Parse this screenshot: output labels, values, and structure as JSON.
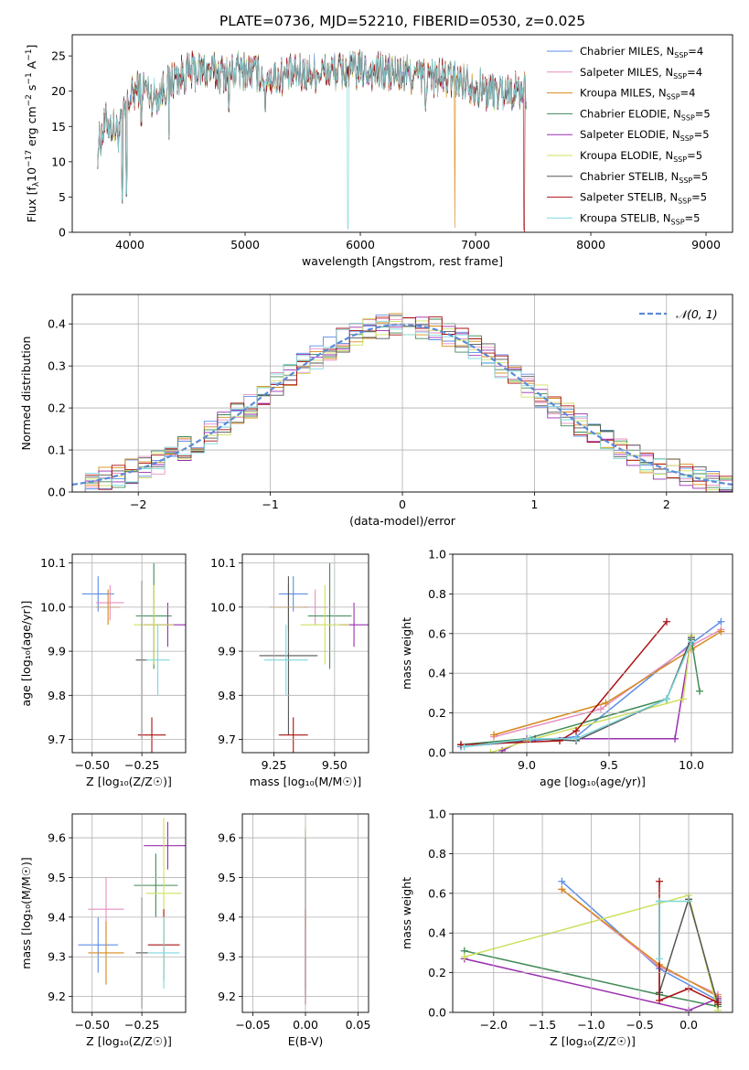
{
  "figure_title": "PLATE=0736, MJD=52210, FIBERID=0530, z=0.025",
  "colors": [
    "#5b8de6",
    "#e88ec0",
    "#d68a1a",
    "#3f8a55",
    "#9a2fb0",
    "#cfe060",
    "#555555",
    "#aa1010",
    "#7dd8dd"
  ],
  "legend_spectrum": [
    {
      "pre": "Chabrier MILES, N",
      "sub": "SSP",
      "post": "=4"
    },
    {
      "pre": "Salpeter MILES, N",
      "sub": "SSP",
      "post": "=4"
    },
    {
      "pre": "Kroupa MILES, N",
      "sub": "SSP",
      "post": "=4"
    },
    {
      "pre": "Chabrier ELODIE, N",
      "sub": "SSP",
      "post": "=5"
    },
    {
      "pre": "Salpeter ELODIE, N",
      "sub": "SSP",
      "post": "=5"
    },
    {
      "pre": "Kroupa ELODIE, N",
      "sub": "SSP",
      "post": "=5"
    },
    {
      "pre": "Chabrier STELIB, N",
      "sub": "SSP",
      "post": "=5"
    },
    {
      "pre": "Salpeter STELIB, N",
      "sub": "SSP",
      "post": "=5"
    },
    {
      "pre": "Kroupa STELIB, N",
      "sub": "SSP",
      "post": "=5"
    }
  ],
  "legend_normal": "𝒩(0, 1)",
  "chart_data": [
    {
      "id": "spectrum",
      "type": "line",
      "xlabel": "wavelength [Angstrom, rest frame]",
      "ylabel_parts": {
        "a": "Flux [f",
        "sub": "λ",
        "b": "10",
        "sup1": "−17",
        "c": " erg cm",
        "sup2": "−2",
        "d": " s",
        "sup3": "−1",
        "e": " A",
        "sup4": "−1",
        "f": "]"
      },
      "xlim": [
        3500,
        9230
      ],
      "ylim": [
        0,
        28
      ],
      "xticks": [
        4000,
        5000,
        6000,
        7000,
        8000,
        9000
      ],
      "yticks": [
        0,
        5,
        10,
        15,
        20,
        25
      ],
      "x_range_data": [
        3720,
        7440
      ],
      "continuum": [
        [
          3720,
          12
        ],
        [
          3800,
          16
        ],
        [
          3900,
          14
        ],
        [
          4000,
          19
        ],
        [
          4100,
          21
        ],
        [
          4200,
          19
        ],
        [
          4400,
          22
        ],
        [
          4600,
          23
        ],
        [
          4800,
          22.5
        ],
        [
          5000,
          23
        ],
        [
          5200,
          22
        ],
        [
          5500,
          22.5
        ],
        [
          6000,
          23
        ],
        [
          6300,
          22.5
        ],
        [
          6600,
          22
        ],
        [
          6900,
          21.5
        ],
        [
          7100,
          20
        ],
        [
          7400,
          20
        ]
      ],
      "dips": [
        [
          3934,
          4
        ],
        [
          3969,
          5
        ],
        [
          4102,
          15
        ],
        [
          4340,
          13
        ],
        [
          4861,
          17
        ],
        [
          5175,
          17
        ],
        [
          5893,
          0
        ],
        [
          6563,
          17
        ],
        [
          6820,
          0
        ],
        [
          7420,
          0
        ]
      ]
    },
    {
      "id": "residuals",
      "type": "step",
      "xlabel": "(data-model)/error",
      "ylabel": "Normed distribution",
      "xlim": [
        -2.5,
        2.5
      ],
      "ylim": [
        0,
        0.47
      ],
      "xticks": [
        -2,
        -1,
        0,
        1,
        2
      ],
      "xticklabels": [
        "−2",
        "−1",
        "0",
        "1",
        "2"
      ],
      "yticks": [
        0,
        0.1,
        0.2,
        0.3,
        0.4
      ],
      "yticklabels": [
        "0.0",
        "0.1",
        "0.2",
        "0.3",
        "0.4"
      ],
      "bin_width": 0.1,
      "normal_mu": 0,
      "normal_sigma": 1
    },
    {
      "id": "age-vs-Z",
      "type": "scatter",
      "xlabel": "Z [log₁₀(Z/Z☉)]",
      "ylabel": "age  [log₁₀(age/yr)]",
      "xlim": [
        -0.6,
        -0.03
      ],
      "ylim": [
        9.67,
        10.12
      ],
      "xticks": [
        -0.5,
        -0.25
      ],
      "xticklabels": [
        "−0.50",
        "−0.25"
      ],
      "yticks": [
        9.7,
        9.8,
        9.9,
        10.0,
        10.1
      ],
      "yticklabels": [
        "9.7",
        "9.8",
        "9.9",
        "10.0",
        "10.1"
      ],
      "points": [
        {
          "x": -0.47,
          "y": 10.03,
          "xe": 0.08,
          "ye": 0.04
        },
        {
          "x": -0.41,
          "y": 10.01,
          "xe": 0.07,
          "ye": 0.04
        },
        {
          "x": -0.42,
          "y": 10.0,
          "xe": 0.06,
          "ye": 0.04
        },
        {
          "x": -0.19,
          "y": 9.98,
          "xe": 0.09,
          "ye": 0.12
        },
        {
          "x": -0.12,
          "y": 9.96,
          "xe": 0.12,
          "ye": 0.05
        },
        {
          "x": -0.19,
          "y": 9.96,
          "xe": 0.1,
          "ye": 0.09
        },
        {
          "x": -0.25,
          "y": 9.88,
          "xe": 0.03,
          "ye": 0.18
        },
        {
          "x": -0.2,
          "y": 9.71,
          "xe": 0.07,
          "ye": 0.04
        },
        {
          "x": -0.17,
          "y": 9.88,
          "xe": 0.06,
          "ye": 0.08
        }
      ]
    },
    {
      "id": "age-vs-mass",
      "type": "scatter",
      "xlabel": "mass [log₁₀(M/M☉)]",
      "ylabel": "",
      "xlim": [
        9.12,
        9.64
      ],
      "ylim": [
        9.67,
        10.12
      ],
      "xticks": [
        9.25,
        9.5
      ],
      "xticklabels": [
        "9.25",
        "9.50"
      ],
      "yticks": [
        9.7,
        9.8,
        9.9,
        10.0,
        10.1
      ],
      "yticklabels": [
        "9.7",
        "9.8",
        "9.9",
        "10.0",
        "10.1"
      ],
      "points": [
        {
          "x": 9.33,
          "y": 10.03,
          "xe": 0.06,
          "ye": 0.04
        },
        {
          "x": 9.42,
          "y": 10.0,
          "xe": 0.05,
          "ye": 0.04
        },
        {
          "x": 9.31,
          "y": 10.0,
          "xe": 0.08,
          "ye": 0.05
        },
        {
          "x": 9.48,
          "y": 9.98,
          "xe": 0.09,
          "ye": 0.12
        },
        {
          "x": 9.58,
          "y": 9.96,
          "xe": 0.06,
          "ye": 0.05
        },
        {
          "x": 9.46,
          "y": 9.96,
          "xe": 0.1,
          "ye": 0.09
        },
        {
          "x": 9.31,
          "y": 9.89,
          "xe": 0.12,
          "ye": 0.18
        },
        {
          "x": 9.33,
          "y": 9.71,
          "xe": 0.06,
          "ye": 0.04
        },
        {
          "x": 9.3,
          "y": 9.88,
          "xe": 0.09,
          "ye": 0.08
        }
      ]
    },
    {
      "id": "weight-vs-age",
      "type": "line",
      "xlabel": "age  [log₁₀(age/yr)]",
      "ylabel": "mass weight",
      "xlim": [
        8.55,
        10.25
      ],
      "ylim": [
        0,
        1
      ],
      "xticks": [
        9.0,
        9.5,
        10.0
      ],
      "xticklabels": [
        "9.0",
        "9.5",
        "10.0"
      ],
      "yticks": [
        0,
        0.2,
        0.4,
        0.6,
        0.8,
        1.0
      ],
      "yticklabels": [
        "0.0",
        "0.2",
        "0.4",
        "0.6",
        "0.8",
        "1.0"
      ],
      "series": [
        {
          "x": [
            8.6,
            9.3,
            10.0,
            10.18
          ],
          "y": [
            0.03,
            0.08,
            0.55,
            0.66
          ]
        },
        {
          "x": [
            8.8,
            9.45,
            10.0,
            10.18
          ],
          "y": [
            0.08,
            0.22,
            0.54,
            0.62
          ]
        },
        {
          "x": [
            8.8,
            9.48,
            10.0,
            10.18
          ],
          "y": [
            0.09,
            0.25,
            0.52,
            0.61
          ]
        },
        {
          "x": [
            8.6,
            9.0,
            9.85,
            10.0,
            10.05
          ],
          "y": [
            0.04,
            0.07,
            0.27,
            0.57,
            0.31
          ]
        },
        {
          "x": [
            8.85,
            9.0,
            9.9,
            10.0
          ],
          "y": [
            0.01,
            0.07,
            0.07,
            0.58
          ]
        },
        {
          "x": [
            8.78,
            9.0,
            9.95,
            10.0
          ],
          "y": [
            0.0,
            0.06,
            0.27,
            0.59
          ]
        },
        {
          "x": [
            8.62,
            9.05,
            9.3,
            9.85,
            10.0
          ],
          "y": [
            0.03,
            0.07,
            0.06,
            0.27,
            0.58
          ]
        },
        {
          "x": [
            8.6,
            9.2,
            9.3,
            9.85
          ],
          "y": [
            0.04,
            0.06,
            0.11,
            0.66
          ]
        },
        {
          "x": [
            8.62,
            9.02,
            9.3,
            9.85,
            10.0
          ],
          "y": [
            0.03,
            0.07,
            0.07,
            0.27,
            0.56
          ]
        }
      ]
    },
    {
      "id": "mass-vs-Z",
      "type": "scatter",
      "xlabel": "Z [log₁₀(Z/Z☉)]",
      "ylabel": "mass [log₁₀(M/M☉)]",
      "xlim": [
        -0.6,
        -0.03
      ],
      "ylim": [
        9.16,
        9.66
      ],
      "xticks": [
        -0.5,
        -0.25
      ],
      "xticklabels": [
        "−0.50",
        "−0.25"
      ],
      "yticks": [
        9.2,
        9.3,
        9.4,
        9.5,
        9.6
      ],
      "yticklabels": [
        "9.2",
        "9.3",
        "9.4",
        "9.5",
        "9.6"
      ],
      "points": [
        {
          "x": -0.47,
          "y": 9.33,
          "xe": 0.1,
          "ye": 0.07
        },
        {
          "x": -0.43,
          "y": 9.42,
          "xe": 0.09,
          "ye": 0.08
        },
        {
          "x": -0.43,
          "y": 9.31,
          "xe": 0.09,
          "ye": 0.08
        },
        {
          "x": -0.18,
          "y": 9.48,
          "xe": 0.11,
          "ye": 0.08
        },
        {
          "x": -0.12,
          "y": 9.58,
          "xe": 0.12,
          "ye": 0.06
        },
        {
          "x": -0.14,
          "y": 9.46,
          "xe": 0.09,
          "ye": 0.19
        },
        {
          "x": -0.25,
          "y": 9.31,
          "xe": 0.03,
          "ye": 0.14
        },
        {
          "x": -0.14,
          "y": 9.33,
          "xe": 0.08,
          "ye": 0.09
        },
        {
          "x": -0.14,
          "y": 9.31,
          "xe": 0.08,
          "ye": 0.09
        }
      ]
    },
    {
      "id": "mass-vs-EBV",
      "type": "scatter",
      "xlabel": "E(B-V)",
      "ylabel": "",
      "xlim": [
        -0.06,
        0.06
      ],
      "ylim": [
        9.16,
        9.66
      ],
      "xticks": [
        -0.05,
        0.0,
        0.05
      ],
      "xticklabels": [
        "−0.05",
        "0.00",
        "0.05"
      ],
      "yticks": [
        9.2,
        9.3,
        9.4,
        9.5,
        9.6
      ],
      "yticklabels": [
        "9.2",
        "9.3",
        "9.4",
        "9.5",
        "9.6"
      ],
      "points": [
        {
          "x": 0,
          "y": 9.42,
          "xe": 0,
          "ye": 0.2
        },
        {
          "x": 0,
          "y": 9.5,
          "xe": 0,
          "ye": 0.13
        },
        {
          "x": 0,
          "y": 9.4,
          "xe": 0,
          "ye": 0.2
        },
        {
          "x": 0,
          "y": 9.3,
          "xe": 0,
          "ye": 0.12
        }
      ]
    },
    {
      "id": "weight-vs-Z",
      "type": "line",
      "xlabel": "Z [log₁₀(Z/Z☉)]",
      "ylabel": "mass weight",
      "xlim": [
        -2.42,
        0.45
      ],
      "ylim": [
        0,
        1
      ],
      "xticks": [
        -2.0,
        -1.5,
        -1.0,
        -0.5,
        0.0
      ],
      "xticklabels": [
        "−2.0",
        "−1.5",
        "−1.0",
        "−0.5",
        "0.0"
      ],
      "yticks": [
        0,
        0.2,
        0.4,
        0.6,
        0.8,
        1.0
      ],
      "yticklabels": [
        "0.0",
        "0.2",
        "0.4",
        "0.6",
        "0.8",
        "1.0"
      ],
      "series": [
        {
          "x": [
            -1.3,
            -0.3,
            0.3
          ],
          "y": [
            0.66,
            0.22,
            0.06
          ]
        },
        {
          "x": [
            -1.3,
            -0.3,
            0.3
          ],
          "y": [
            0.62,
            0.23,
            0.09
          ]
        },
        {
          "x": [
            -1.3,
            -0.3,
            0.3
          ],
          "y": [
            0.62,
            0.24,
            0.08
          ]
        },
        {
          "x": [
            -2.3,
            -0.3,
            0.3
          ],
          "y": [
            0.31,
            0.09,
            0.03
          ]
        },
        {
          "x": [
            -2.3,
            0.0,
            0.3
          ],
          "y": [
            0.27,
            0.01,
            0.07
          ]
        },
        {
          "x": [
            -2.3,
            0.0,
            0.3
          ],
          "y": [
            0.28,
            0.59,
            0.01
          ]
        },
        {
          "x": [
            -0.3,
            -0.3,
            0.0,
            0.3
          ],
          "y": [
            0.56,
            0.1,
            0.57,
            0.04
          ]
        },
        {
          "x": [
            -0.3,
            -0.3,
            0.0,
            0.3
          ],
          "y": [
            0.66,
            0.06,
            0.12,
            0.05
          ]
        },
        {
          "x": [
            -0.3,
            -0.3,
            0.0
          ],
          "y": [
            0.27,
            0.56,
            0.56
          ]
        }
      ]
    }
  ]
}
